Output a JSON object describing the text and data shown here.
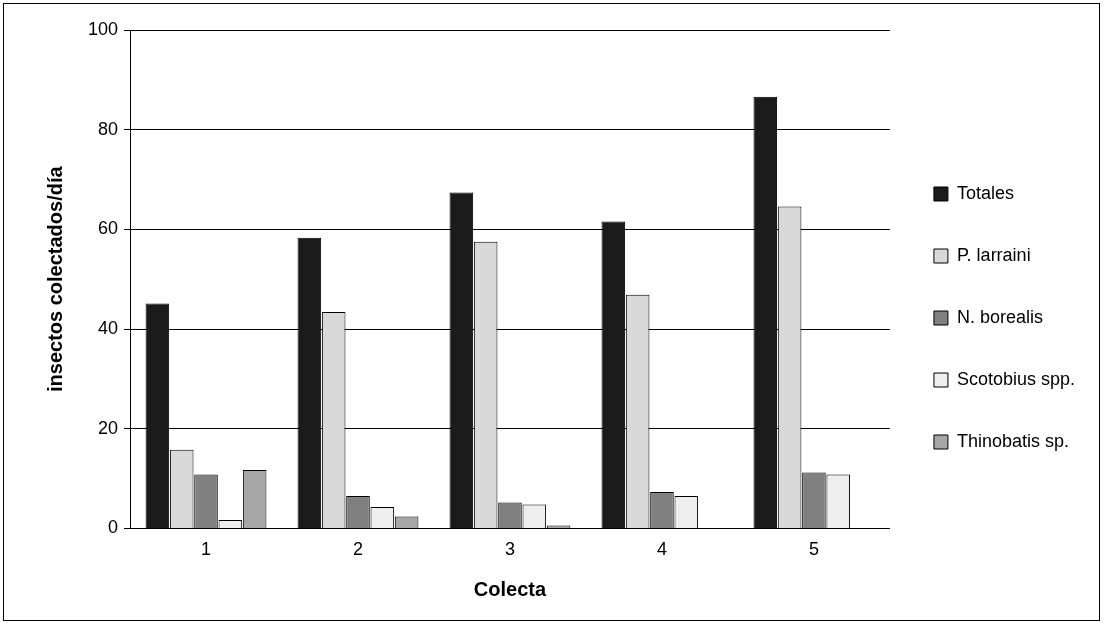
{
  "chart_data": {
    "type": "bar",
    "xlabel": "Colecta",
    "ylabel": "insectos colectados/día",
    "categories": [
      "1",
      "2",
      "3",
      "4",
      "5"
    ],
    "series": [
      {
        "name": "Totales",
        "color": "#1a1a1a",
        "values": [
          45.1,
          58.3,
          67.4,
          61.6,
          86.6
        ]
      },
      {
        "name": "P. larraini",
        "color": "#d9d9d9",
        "values": [
          15.8,
          43.4,
          57.5,
          46.9,
          64.6
        ]
      },
      {
        "name": "N. borealis",
        "color": "#808080",
        "values": [
          10.8,
          6.5,
          5.2,
          7.3,
          11.2
        ]
      },
      {
        "name": "Scotobius spp.",
        "color": "#eeeeee",
        "values": [
          1.7,
          4.3,
          4.8,
          6.5,
          10.8
        ]
      },
      {
        "name": "Thinobatis sp.",
        "color": "#a6a6a6",
        "values": [
          11.7,
          2.4,
          0.6,
          null,
          null
        ]
      }
    ],
    "ylim": [
      0,
      100
    ],
    "yticks": [
      0,
      20,
      40,
      60,
      80,
      100
    ],
    "grid": "y",
    "legend": "right"
  }
}
